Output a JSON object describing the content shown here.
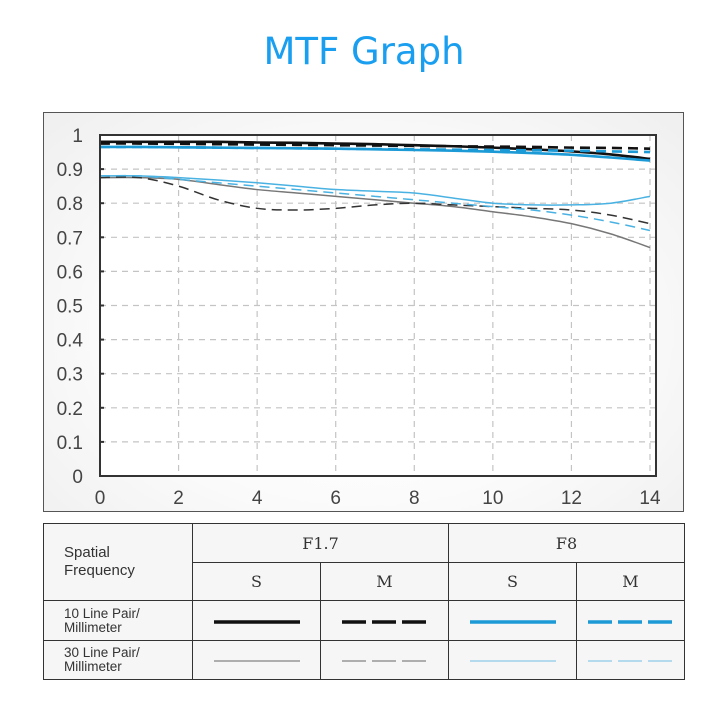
{
  "header": {
    "title": "MTF Graph"
  },
  "colors": {
    "title": "#1a9ff0",
    "f17_10": "#111111",
    "f17_30": "#777777",
    "f8_10": "#1c9ad6",
    "f8_30": "#8ccaea",
    "grid": "#c4c4c4",
    "axis": "#333333"
  },
  "legend": {
    "spatial_frequency_label": "Spatial Frequency",
    "apertures": [
      {
        "label": "F1.7",
        "sub": [
          "S",
          "M"
        ]
      },
      {
        "label": "F8",
        "sub": [
          "S",
          "M"
        ]
      }
    ],
    "rows": [
      {
        "label_line1": "10 Line Pair/",
        "label_line2": "Millimeter"
      },
      {
        "label_line1": "30 Line Pair/",
        "label_line2": "Millimeter"
      }
    ]
  },
  "chart_data": {
    "type": "line",
    "title": "MTF Graph",
    "xlabel": "",
    "ylabel": "",
    "xlim": [
      0,
      14
    ],
    "ylim": [
      0,
      1
    ],
    "x_ticks": [
      "0",
      "2",
      "4",
      "6",
      "8",
      "10",
      "12",
      "14"
    ],
    "y_ticks": [
      "0",
      "0.1",
      "0.2",
      "0.3",
      "0.4",
      "0.5",
      "0.6",
      "0.7",
      "0.8",
      "0.9",
      "1"
    ],
    "grid": true,
    "legend_position": "table below chart",
    "x": [
      0,
      1,
      2,
      3,
      4,
      5,
      6,
      7,
      8,
      9,
      10,
      11,
      12,
      13,
      14
    ],
    "series": [
      {
        "name": "F1.7 S 10 lp/mm",
        "style": "solid-thick",
        "color": "#111111",
        "values": [
          0.98,
          0.98,
          0.98,
          0.98,
          0.978,
          0.977,
          0.975,
          0.973,
          0.97,
          0.967,
          0.963,
          0.958,
          0.952,
          0.943,
          0.93
        ]
      },
      {
        "name": "F1.7 M 10 lp/mm",
        "style": "dashed-thick",
        "color": "#111111",
        "values": [
          0.975,
          0.975,
          0.974,
          0.973,
          0.972,
          0.971,
          0.97,
          0.969,
          0.968,
          0.967,
          0.966,
          0.965,
          0.963,
          0.962,
          0.96
        ]
      },
      {
        "name": "F8 S 10 lp/mm",
        "style": "solid-thick",
        "color": "#1c9ad6",
        "values": [
          0.965,
          0.965,
          0.964,
          0.963,
          0.962,
          0.961,
          0.96,
          0.958,
          0.956,
          0.954,
          0.951,
          0.947,
          0.942,
          0.934,
          0.925
        ]
      },
      {
        "name": "F8 M 10 lp/mm",
        "style": "dashed-thick",
        "color": "#1c9ad6",
        "values": [
          0.965,
          0.965,
          0.964,
          0.963,
          0.962,
          0.961,
          0.96,
          0.959,
          0.958,
          0.957,
          0.956,
          0.955,
          0.954,
          0.952,
          0.95
        ]
      },
      {
        "name": "F1.7 S 30 lp/mm",
        "style": "solid-thin",
        "color": "#777777",
        "values": [
          0.875,
          0.875,
          0.87,
          0.855,
          0.84,
          0.83,
          0.82,
          0.81,
          0.8,
          0.79,
          0.775,
          0.76,
          0.74,
          0.71,
          0.67
        ]
      },
      {
        "name": "F1.7 M 30 lp/mm",
        "style": "dashed-thin",
        "color": "#333333",
        "values": [
          0.875,
          0.875,
          0.85,
          0.81,
          0.785,
          0.78,
          0.785,
          0.795,
          0.8,
          0.795,
          0.79,
          0.785,
          0.78,
          0.765,
          0.74
        ]
      },
      {
        "name": "F8 S 30 lp/mm",
        "style": "solid-thin",
        "color": "#4ab2e2",
        "values": [
          0.88,
          0.88,
          0.875,
          0.868,
          0.86,
          0.85,
          0.84,
          0.835,
          0.83,
          0.815,
          0.8,
          0.795,
          0.795,
          0.8,
          0.82
        ]
      },
      {
        "name": "F8 M 30 lp/mm",
        "style": "dashed-thin",
        "color": "#4ab2e2",
        "values": [
          0.88,
          0.88,
          0.87,
          0.86,
          0.85,
          0.84,
          0.83,
          0.82,
          0.81,
          0.8,
          0.79,
          0.78,
          0.765,
          0.745,
          0.72
        ]
      }
    ]
  }
}
